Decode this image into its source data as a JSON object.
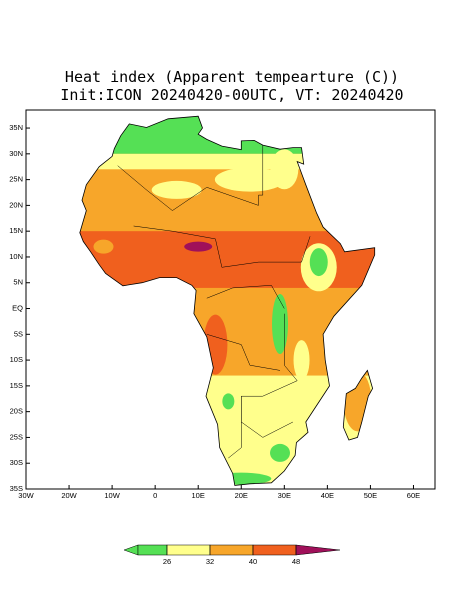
{
  "map": {
    "title": [
      "Heat index (Apparent tempearture (C))",
      "Init:ICON 20240420-00UTC, VT: 20240420"
    ],
    "xlim": [
      -30,
      65
    ],
    "ylim": [
      -35,
      38.5
    ],
    "xticks": [
      {
        "value": -30,
        "label": "30W"
      },
      {
        "value": -20,
        "label": "20W"
      },
      {
        "value": -10,
        "label": "10W"
      },
      0,
      {
        "value": 10,
        "label": "10E"
      },
      {
        "value": 20,
        "label": "20E"
      },
      {
        "value": 30,
        "label": "30E"
      },
      {
        "value": 40,
        "label": "40E"
      },
      {
        "value": 50,
        "label": "50E"
      },
      {
        "value": 60,
        "label": "60E"
      }
    ],
    "yticks": [
      {
        "value": 35,
        "label": "35N"
      },
      {
        "value": 30,
        "label": "30N"
      },
      {
        "value": 25,
        "label": "25N"
      },
      {
        "value": 20,
        "label": "20N"
      },
      {
        "value": 15,
        "label": "15N"
      },
      {
        "value": 10,
        "label": "10N"
      },
      {
        "value": 5,
        "label": "5N"
      },
      {
        "value": 0,
        "label": "EQ"
      },
      {
        "value": -5,
        "label": "5S"
      },
      {
        "value": -10,
        "label": "10S"
      },
      {
        "value": -15,
        "label": "15S"
      },
      {
        "value": -20,
        "label": "20S"
      },
      {
        "value": -25,
        "label": "25S"
      },
      {
        "value": -30,
        "label": "30S"
      },
      {
        "value": -35,
        "label": "35S"
      }
    ],
    "colorbar": {
      "ticks": [
        26,
        32,
        40,
        48
      ],
      "colors": [
        "#55e055",
        "#ffff8c",
        "#f7a62a",
        "#f0601e",
        "#a0105a"
      ]
    }
  }
}
